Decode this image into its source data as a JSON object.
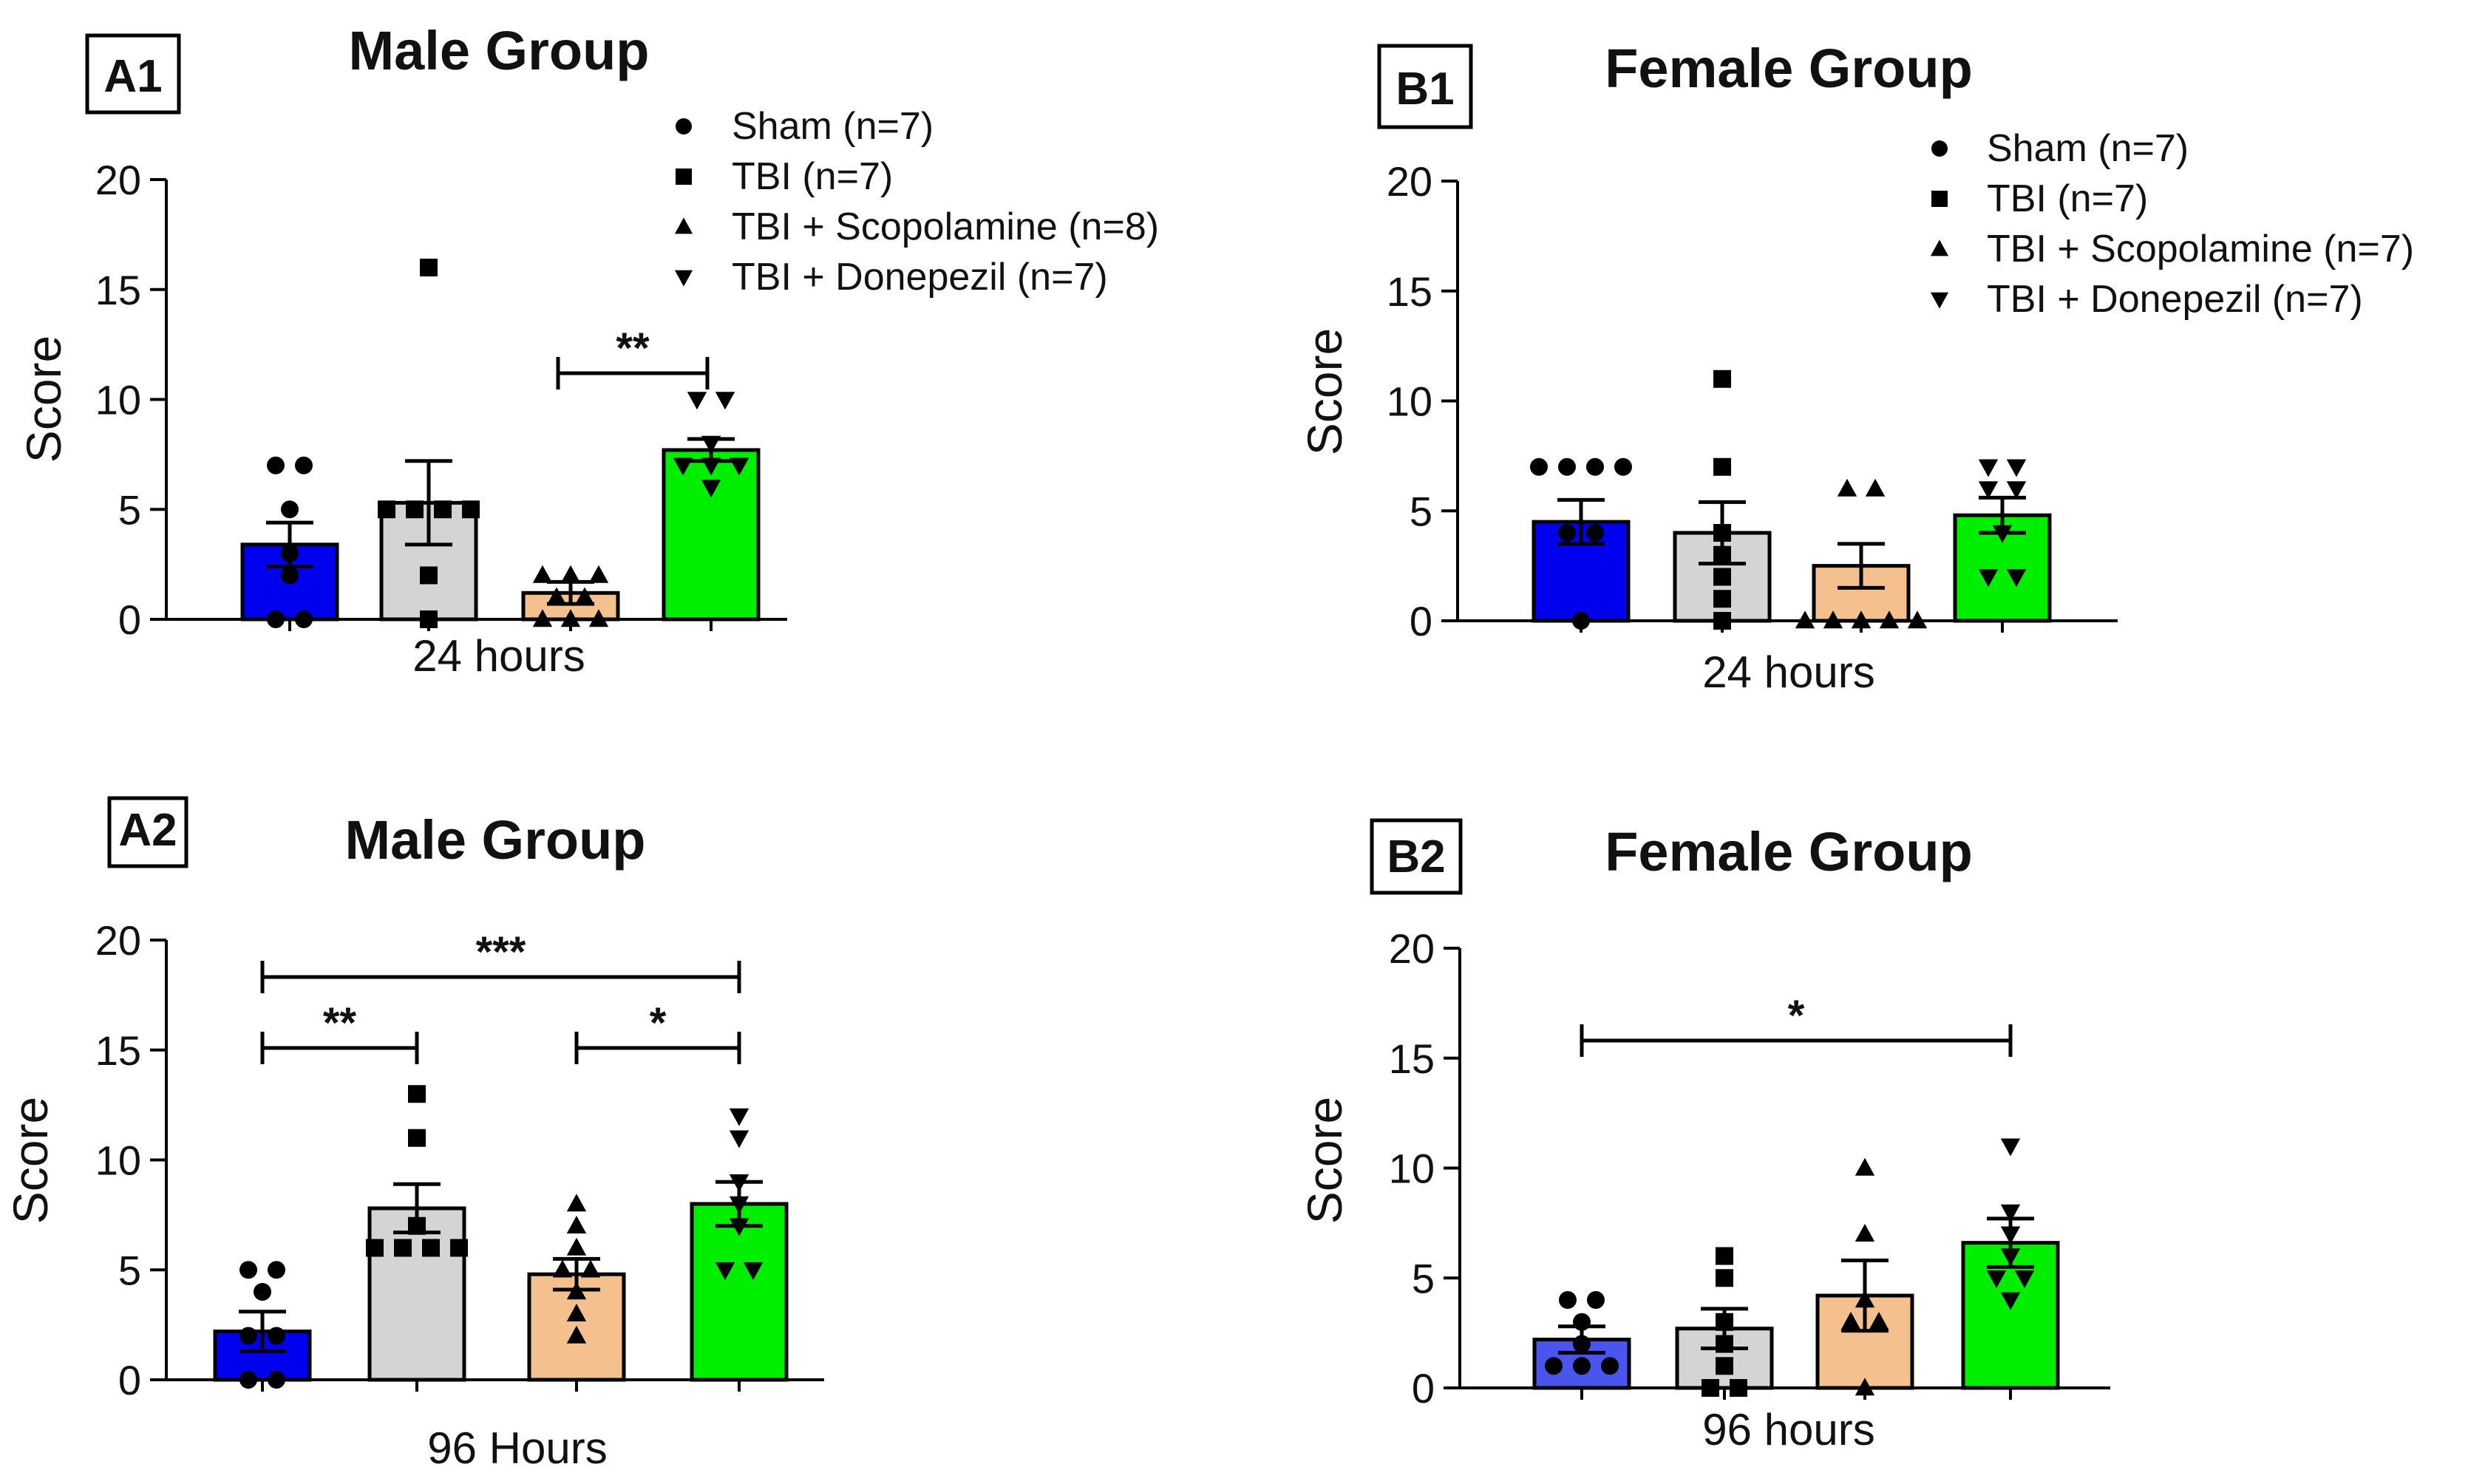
{
  "figure": {
    "legend_markers": {
      "Sham": "circle",
      "TBI": "square",
      "TBI + Scopolamine": "triangle-up",
      "TBI + Donepezil": "triangle-down"
    },
    "colors": {
      "Sham": "#0000ee",
      "Sham_light": "#4a55ee",
      "TBI": "#d4d4d4",
      "TBI + Scopolamine": "#f4c08e",
      "TBI + Donepezil": "#00ee00"
    }
  },
  "chart_data": [
    {
      "panel_label": "A1",
      "type": "bar",
      "title": "Male Group",
      "xlabel": "24 hours",
      "ylabel": "Score",
      "ylim": [
        0,
        20
      ],
      "yticks": [
        "0",
        "5",
        "10",
        "15",
        "20"
      ],
      "categories": [
        "Sham",
        "TBI",
        "TBI + Scopolamine",
        "TBI + Donepezil"
      ],
      "values": [
        3.4,
        5.3,
        1.2,
        7.7
      ],
      "sem": [
        1.0,
        1.9,
        0.5,
        0.5
      ],
      "points": [
        [
          0,
          0,
          2,
          3,
          5,
          7,
          7
        ],
        [
          0,
          2,
          5,
          5,
          5,
          5,
          16
        ],
        [
          0,
          0,
          0,
          1,
          1,
          2,
          2,
          2
        ],
        [
          6,
          7,
          7,
          7,
          8,
          10,
          10
        ]
      ],
      "legend": [
        "Sham (n=7)",
        "TBI (n=7)",
        "TBI + Scopolamine (n=8)",
        "TBI + Donepezil (n=7)"
      ],
      "brackets": [
        {
          "from": 2,
          "to": 3,
          "label": "**"
        }
      ]
    },
    {
      "panel_label": "B1",
      "type": "bar",
      "title": "Female Group",
      "xlabel": "24 hours",
      "ylabel": "Score",
      "ylim": [
        0,
        20
      ],
      "yticks": [
        "0",
        "5",
        "10",
        "15",
        "20"
      ],
      "categories": [
        "Sham",
        "TBI",
        "TBI + Scopolamine",
        "TBI + Donepezil"
      ],
      "values": [
        4.5,
        4.0,
        2.5,
        4.8
      ],
      "sem": [
        1.0,
        1.4,
        1.0,
        0.8
      ],
      "points": [
        [
          0,
          4,
          4,
          7,
          7,
          7,
          7
        ],
        [
          0,
          1,
          2,
          3,
          4,
          7,
          11
        ],
        [
          0,
          0,
          0,
          0,
          0,
          6,
          6
        ],
        [
          2,
          2,
          4,
          6,
          6,
          7,
          7
        ]
      ],
      "legend": [
        "Sham (n=7)",
        "TBI (n=7)",
        "TBI + Scopolamine (n=7)",
        "TBI + Donepezil (n=7)"
      ],
      "brackets": []
    },
    {
      "panel_label": "A2",
      "type": "bar",
      "title": "Male Group",
      "xlabel": "96 Hours",
      "ylabel": "Score",
      "ylim": [
        0,
        20
      ],
      "yticks": [
        "0",
        "5",
        "10",
        "15",
        "20"
      ],
      "categories": [
        "Sham",
        "TBI",
        "TBI + Scopolamine",
        "TBI + Donepezil"
      ],
      "values": [
        2.2,
        7.8,
        4.8,
        8.0
      ],
      "sem": [
        0.9,
        1.1,
        0.7,
        1.0
      ],
      "points": [
        [
          0,
          0,
          2,
          2,
          4,
          5,
          5
        ],
        [
          6,
          6,
          6,
          6,
          7,
          11,
          13
        ],
        [
          2,
          3,
          4,
          5,
          5,
          6,
          7,
          8
        ],
        [
          5,
          5,
          7,
          8,
          9,
          11,
          12
        ]
      ],
      "legend": [],
      "brackets": [
        {
          "from": 0,
          "to": 3,
          "label": "***",
          "level": 0
        },
        {
          "from": 0,
          "to": 1,
          "label": "**",
          "level": 1
        },
        {
          "from": 2,
          "to": 3,
          "label": "*",
          "level": 1
        }
      ]
    },
    {
      "panel_label": "B2",
      "type": "bar",
      "title": "Female Group",
      "xlabel": "96 hours",
      "ylabel": "Score",
      "ylim": [
        0,
        20
      ],
      "yticks": [
        "0",
        "5",
        "10",
        "15",
        "20"
      ],
      "categories": [
        "Sham",
        "TBI",
        "TBI + Scopolamine",
        "TBI + Donepezil"
      ],
      "values": [
        2.2,
        2.7,
        4.2,
        6.6
      ],
      "sem": [
        0.6,
        0.9,
        1.6,
        1.1
      ],
      "points": [
        [
          1,
          1,
          1,
          2,
          3,
          4,
          4
        ],
        [
          0,
          0,
          1,
          2,
          3,
          5,
          6
        ],
        [
          0,
          3,
          3,
          4,
          7,
          10
        ],
        [
          4,
          5,
          5,
          6,
          7,
          8,
          11
        ]
      ],
      "legend": [],
      "brackets": [
        {
          "from": 0,
          "to": 3,
          "label": "*",
          "level": 0
        }
      ]
    }
  ]
}
